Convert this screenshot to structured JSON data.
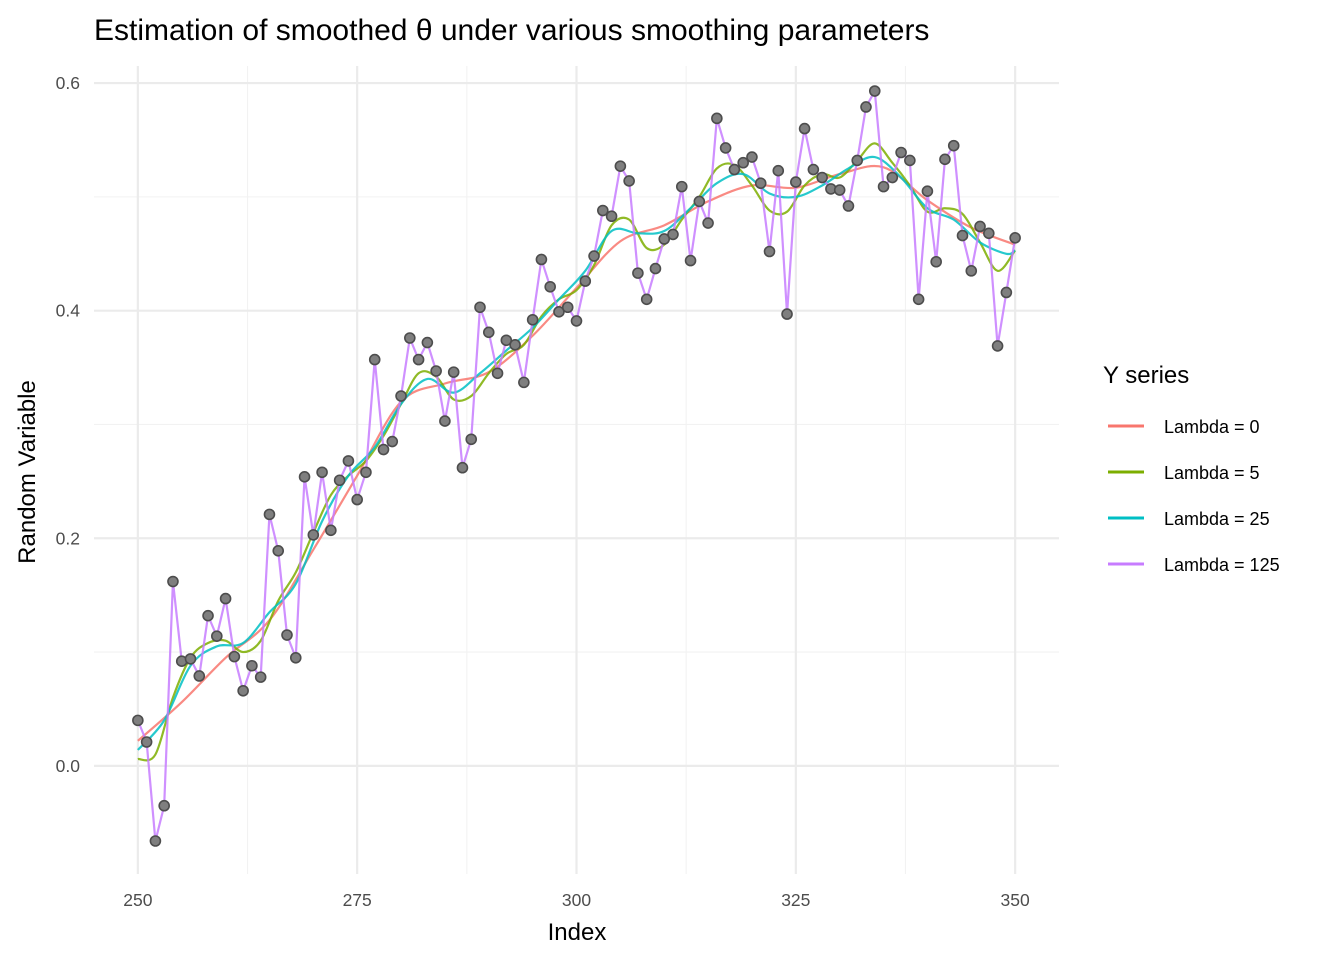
{
  "chart_data": {
    "type": "line",
    "title": "Estimation of smoothed  θ  under various smoothing parameters",
    "xlabel": "Index",
    "ylabel": "Random Variable",
    "xlim": [
      245,
      355
    ],
    "ylim": [
      -0.095,
      0.615
    ],
    "x_major_ticks": [
      250,
      275,
      300,
      325,
      350
    ],
    "x_tick_labels": [
      "250",
      "275",
      "300",
      "325",
      "350"
    ],
    "x_minor_ticks": [
      262.5,
      287.5,
      312.5,
      337.5
    ],
    "y_major_ticks": [
      0.0,
      0.2,
      0.4,
      0.6
    ],
    "y_tick_labels": [
      "0.0",
      "0.2",
      "0.4",
      "0.6"
    ],
    "y_minor_ticks": [
      0.1,
      0.3,
      0.5
    ],
    "grid": true,
    "legend": {
      "title": "Y series",
      "placement": "right"
    },
    "x_start": 250,
    "points": [
      0.04,
      0.021,
      -0.066,
      -0.035,
      0.162,
      0.092,
      0.094,
      0.079,
      0.132,
      0.114,
      0.147,
      0.096,
      0.066,
      0.088,
      0.078,
      0.221,
      0.189,
      0.115,
      0.095,
      0.254,
      0.203,
      0.258,
      0.207,
      0.251,
      0.268,
      0.234,
      0.258,
      0.357,
      0.278,
      0.285,
      0.325,
      0.376,
      0.357,
      0.372,
      0.347,
      0.303,
      0.346,
      0.262,
      0.287,
      0.403,
      0.381,
      0.345,
      0.374,
      0.37,
      0.337,
      0.392,
      0.445,
      0.421,
      0.399,
      0.403,
      0.391,
      0.426,
      0.448,
      0.488,
      0.483,
      0.527,
      0.514,
      0.433,
      0.41,
      0.437,
      0.463,
      0.467,
      0.509,
      0.444,
      0.496,
      0.477,
      0.569,
      0.543,
      0.524,
      0.53,
      0.535,
      0.512,
      0.452,
      0.523,
      0.397,
      0.513,
      0.56,
      0.524,
      0.517,
      0.507,
      0.506,
      0.492,
      0.532,
      0.579,
      0.593,
      0.509,
      0.517,
      0.539,
      0.532,
      0.41,
      0.505,
      0.443,
      0.533,
      0.545,
      0.466,
      0.435,
      0.474,
      0.468,
      0.369,
      0.416,
      0.464
    ],
    "series": [
      {
        "name": "Lambda = 0",
        "color": "#F8766D",
        "anchors_x": [
          250,
          255,
          260,
          265,
          270,
          275,
          280,
          285,
          290,
          295,
          300,
          305,
          310,
          315,
          320,
          325,
          330,
          335,
          340,
          345,
          350
        ],
        "anchors_y": [
          0.022,
          0.056,
          0.095,
          0.128,
          0.19,
          0.255,
          0.32,
          0.336,
          0.346,
          0.378,
          0.42,
          0.461,
          0.475,
          0.496,
          0.51,
          0.508,
          0.52,
          0.526,
          0.497,
          0.473,
          0.458
        ]
      },
      {
        "name": "Lambda = 5",
        "color": "#7CAE00",
        "anchors_x": [
          250,
          252,
          254,
          256,
          258,
          260,
          262,
          264,
          266,
          268,
          270,
          272,
          274,
          276,
          278,
          280,
          282,
          284,
          286,
          288,
          290,
          292,
          294,
          296,
          298,
          300,
          302,
          304,
          306,
          308,
          310,
          312,
          314,
          316,
          318,
          320,
          322,
          324,
          326,
          328,
          330,
          332,
          334,
          336,
          338,
          340,
          342,
          344,
          346,
          348,
          350
        ],
        "anchors_y": [
          0.006,
          0.01,
          0.06,
          0.095,
          0.108,
          0.11,
          0.1,
          0.11,
          0.145,
          0.17,
          0.205,
          0.238,
          0.255,
          0.268,
          0.29,
          0.318,
          0.345,
          0.342,
          0.322,
          0.325,
          0.345,
          0.362,
          0.37,
          0.395,
          0.41,
          0.418,
          0.44,
          0.475,
          0.48,
          0.455,
          0.458,
          0.48,
          0.5,
          0.525,
          0.528,
          0.51,
          0.488,
          0.487,
          0.51,
          0.52,
          0.517,
          0.532,
          0.547,
          0.53,
          0.51,
          0.487,
          0.49,
          0.485,
          0.46,
          0.435,
          0.453
        ]
      },
      {
        "name": "Lambda = 25",
        "color": "#00BFC4",
        "anchors_x": [
          250,
          253,
          256,
          259,
          262,
          265,
          268,
          271,
          274,
          277,
          280,
          283,
          286,
          289,
          292,
          295,
          298,
          301,
          304,
          307,
          310,
          313,
          316,
          319,
          322,
          325,
          328,
          331,
          334,
          337,
          340,
          343,
          346,
          349,
          350
        ],
        "anchors_y": [
          0.014,
          0.04,
          0.088,
          0.105,
          0.108,
          0.135,
          0.16,
          0.215,
          0.255,
          0.28,
          0.318,
          0.34,
          0.328,
          0.345,
          0.365,
          0.385,
          0.41,
          0.435,
          0.47,
          0.468,
          0.47,
          0.49,
          0.512,
          0.52,
          0.503,
          0.5,
          0.51,
          0.525,
          0.535,
          0.517,
          0.49,
          0.48,
          0.46,
          0.45,
          0.453
        ]
      },
      {
        "name": "Lambda = 125",
        "color": "#C77CFF",
        "follows_points": true
      }
    ]
  }
}
